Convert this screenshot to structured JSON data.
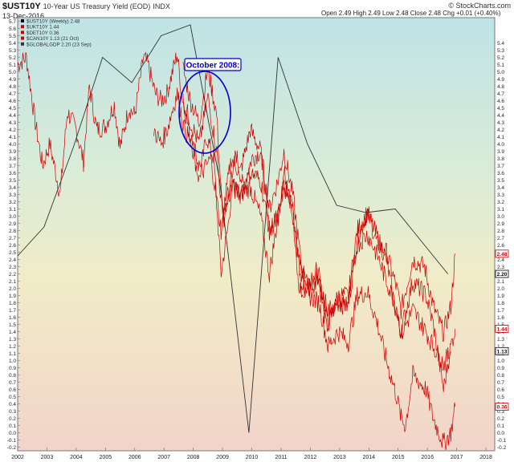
{
  "header": {
    "symbol": "$UST10Y",
    "description": "10-Year US Treasury Yield (EOD)",
    "exchange": "INDX",
    "date": "13-Dec-2016",
    "ohlc": "Open 2.49  High 2.49  Low 2.48  Close 2.48  Chg +0.01 (+0.40%)",
    "logo": "© StockCharts.com"
  },
  "legend": [
    {
      "label": "$UST10Y (Weekly) 2.48",
      "color": "#000000"
    },
    {
      "label": "$UKT10Y 1.44",
      "color": "#cc0000"
    },
    {
      "label": "$DET10Y 0.36",
      "color": "#cc0000"
    },
    {
      "label": "$CAN10Y 1.13 (21 Oct)",
      "color": "#cc0000"
    },
    {
      "label": "$GLOBALGDP 2.20 (23 Sep)",
      "color": "#333333"
    }
  ],
  "annotation": {
    "label": "October 2008:"
  },
  "chart_data": {
    "type": "line",
    "x_ticks": [
      "2002",
      "2003",
      "2004",
      "2005",
      "2006",
      "2007",
      "2008",
      "2009",
      "2010",
      "2011",
      "2012",
      "2013",
      "2014",
      "2015",
      "2016",
      "2017",
      "2018"
    ],
    "x_range": [
      2002.0,
      2018.3
    ],
    "y_range": [
      -0.25,
      5.75
    ],
    "y_ticks": [
      -0.2,
      -0.1,
      0.0,
      0.1,
      0.2,
      0.3,
      0.4,
      0.5,
      0.6,
      0.7,
      0.8,
      0.9,
      1.0,
      1.1,
      1.2,
      1.3,
      1.4,
      1.5,
      1.6,
      1.7,
      1.8,
      1.9,
      2.0,
      2.1,
      2.2,
      2.3,
      2.4,
      2.5,
      2.6,
      2.7,
      2.8,
      2.9,
      3.0,
      3.1,
      3.2,
      3.3,
      3.4,
      3.5,
      3.6,
      3.7,
      3.8,
      3.9,
      4.0,
      4.1,
      4.2,
      4.3,
      4.4,
      4.5,
      4.6,
      4.7,
      4.8,
      4.9,
      5.0,
      5.1,
      5.2,
      5.3,
      5.4,
      5.5,
      5.6,
      5.7
    ],
    "y_ticks_right": [
      -0.2,
      -0.1,
      0.0,
      0.1,
      0.2,
      0.3,
      0.4,
      0.5,
      0.6,
      0.7,
      0.8,
      0.9,
      1.0,
      1.1,
      1.2,
      1.3,
      1.4,
      1.5,
      1.6,
      1.7,
      1.8,
      1.9,
      2.0,
      2.1,
      2.2,
      2.3,
      2.4,
      2.5,
      2.6,
      2.7,
      2.8,
      2.9,
      3.0,
      3.1,
      3.2,
      3.3,
      3.4,
      3.5,
      3.6,
      3.7,
      3.8,
      3.9,
      4.0,
      4.1,
      4.2,
      4.3,
      4.4,
      4.5,
      4.6,
      4.7,
      4.8,
      4.9,
      5.0,
      5.1,
      5.2,
      5.3,
      5.4
    ],
    "series": [
      {
        "name": "$GLOBALGDP",
        "color": "#333333",
        "points": [
          [
            2002.0,
            2.45
          ],
          [
            2002.9,
            2.85
          ],
          [
            2003.9,
            3.95
          ],
          [
            2004.9,
            5.2
          ],
          [
            2005.9,
            4.85
          ],
          [
            2006.9,
            5.5
          ],
          [
            2007.9,
            5.65
          ],
          [
            2008.9,
            3.5
          ],
          [
            2009.9,
            0.0
          ],
          [
            2010.9,
            5.2
          ],
          [
            2011.9,
            4.0
          ],
          [
            2012.9,
            3.15
          ],
          [
            2013.9,
            3.05
          ],
          [
            2014.9,
            3.1
          ],
          [
            2015.9,
            2.6
          ],
          [
            2016.7,
            2.2
          ]
        ]
      },
      {
        "name": "$UST10Y",
        "color": "#cc0000",
        "points": [
          [
            2002.0,
            5.1
          ],
          [
            2002.3,
            5.2
          ],
          [
            2002.6,
            4.3
          ],
          [
            2002.85,
            3.7
          ],
          [
            2003.1,
            4.0
          ],
          [
            2003.45,
            3.3
          ],
          [
            2003.7,
            4.45
          ],
          [
            2004.0,
            4.2
          ],
          [
            2004.25,
            3.75
          ],
          [
            2004.45,
            4.8
          ],
          [
            2004.7,
            4.2
          ],
          [
            2005.0,
            4.25
          ],
          [
            2005.3,
            4.55
          ],
          [
            2005.5,
            3.95
          ],
          [
            2005.8,
            4.5
          ],
          [
            2006.0,
            4.4
          ],
          [
            2006.3,
            5.2
          ],
          [
            2006.45,
            5.1
          ],
          [
            2006.7,
            4.7
          ],
          [
            2006.9,
            4.6
          ],
          [
            2007.1,
            4.7
          ],
          [
            2007.45,
            5.25
          ],
          [
            2007.6,
            4.7
          ],
          [
            2007.9,
            4.1
          ],
          [
            2008.2,
            3.5
          ],
          [
            2008.45,
            4.1
          ],
          [
            2008.7,
            3.8
          ],
          [
            2008.95,
            2.2
          ],
          [
            2009.2,
            2.9
          ],
          [
            2009.45,
            3.9
          ],
          [
            2009.7,
            3.4
          ],
          [
            2010.0,
            3.8
          ],
          [
            2010.3,
            3.9
          ],
          [
            2010.6,
            2.8
          ],
          [
            2010.9,
            3.0
          ],
          [
            2011.1,
            3.6
          ],
          [
            2011.3,
            3.4
          ],
          [
            2011.6,
            2.0
          ],
          [
            2011.9,
            2.0
          ],
          [
            2012.2,
            2.3
          ],
          [
            2012.55,
            1.45
          ],
          [
            2012.9,
            1.8
          ],
          [
            2013.3,
            1.75
          ],
          [
            2013.6,
            2.7
          ],
          [
            2013.95,
            3.05
          ],
          [
            2014.3,
            2.6
          ],
          [
            2014.6,
            2.5
          ],
          [
            2014.95,
            2.0
          ],
          [
            2015.1,
            1.7
          ],
          [
            2015.5,
            2.4
          ],
          [
            2015.9,
            2.3
          ],
          [
            2016.2,
            1.75
          ],
          [
            2016.55,
            1.38
          ],
          [
            2016.8,
            1.75
          ],
          [
            2016.95,
            2.48
          ]
        ]
      },
      {
        "name": "$UKT10Y",
        "color": "#cc0000",
        "points": [
          [
            2007.65,
            5.05
          ],
          [
            2007.9,
            4.6
          ],
          [
            2008.2,
            4.3
          ],
          [
            2008.5,
            5.05
          ],
          [
            2008.8,
            4.4
          ],
          [
            2009.0,
            3.0
          ],
          [
            2009.3,
            3.8
          ],
          [
            2009.6,
            3.6
          ],
          [
            2009.95,
            4.2
          ],
          [
            2010.3,
            3.9
          ],
          [
            2010.6,
            3.1
          ],
          [
            2010.9,
            3.5
          ],
          [
            2011.1,
            3.9
          ],
          [
            2011.4,
            3.3
          ],
          [
            2011.7,
            2.3
          ],
          [
            2011.95,
            2.0
          ],
          [
            2012.3,
            2.2
          ],
          [
            2012.6,
            1.5
          ],
          [
            2012.95,
            1.9
          ],
          [
            2013.3,
            1.9
          ],
          [
            2013.6,
            2.8
          ],
          [
            2013.95,
            3.05
          ],
          [
            2014.3,
            2.7
          ],
          [
            2014.6,
            2.4
          ],
          [
            2014.95,
            1.6
          ],
          [
            2015.1,
            1.4
          ],
          [
            2015.5,
            2.1
          ],
          [
            2015.95,
            1.9
          ],
          [
            2016.2,
            1.5
          ],
          [
            2016.55,
            0.6
          ],
          [
            2016.8,
            1.2
          ],
          [
            2016.95,
            1.44
          ]
        ]
      },
      {
        "name": "$DET10Y",
        "color": "#cc0000",
        "points": [
          [
            2007.65,
            4.6
          ],
          [
            2007.9,
            4.3
          ],
          [
            2008.2,
            4.0
          ],
          [
            2008.5,
            4.65
          ],
          [
            2008.8,
            3.9
          ],
          [
            2009.0,
            3.0
          ],
          [
            2009.3,
            3.5
          ],
          [
            2009.6,
            3.3
          ],
          [
            2009.95,
            3.4
          ],
          [
            2010.3,
            3.0
          ],
          [
            2010.6,
            2.2
          ],
          [
            2010.9,
            3.0
          ],
          [
            2011.1,
            3.5
          ],
          [
            2011.4,
            3.1
          ],
          [
            2011.7,
            2.0
          ],
          [
            2011.95,
            1.9
          ],
          [
            2012.3,
            1.8
          ],
          [
            2012.6,
            1.2
          ],
          [
            2012.95,
            1.4
          ],
          [
            2013.3,
            1.25
          ],
          [
            2013.6,
            1.9
          ],
          [
            2013.95,
            1.95
          ],
          [
            2014.3,
            1.5
          ],
          [
            2014.6,
            1.0
          ],
          [
            2014.95,
            0.5
          ],
          [
            2015.1,
            0.2
          ],
          [
            2015.25,
            0.1
          ],
          [
            2015.5,
            0.8
          ],
          [
            2015.95,
            0.6
          ],
          [
            2016.2,
            0.2
          ],
          [
            2016.55,
            -0.15
          ],
          [
            2016.8,
            0.0
          ],
          [
            2016.95,
            0.36
          ]
        ]
      },
      {
        "name": "$CAN10Y",
        "color": "#cc0000",
        "points": [
          [
            2006.65,
            4.2
          ],
          [
            2006.9,
            4.0
          ],
          [
            2007.1,
            4.2
          ],
          [
            2007.45,
            4.7
          ],
          [
            2007.7,
            4.2
          ],
          [
            2007.95,
            4.0
          ],
          [
            2008.3,
            3.6
          ],
          [
            2008.6,
            3.8
          ],
          [
            2008.95,
            2.8
          ],
          [
            2009.3,
            3.4
          ],
          [
            2009.6,
            3.3
          ],
          [
            2009.95,
            3.6
          ],
          [
            2010.3,
            3.5
          ],
          [
            2010.6,
            2.8
          ],
          [
            2010.9,
            3.0
          ],
          [
            2011.1,
            3.4
          ],
          [
            2011.4,
            3.1
          ],
          [
            2011.7,
            2.2
          ],
          [
            2011.95,
            2.0
          ],
          [
            2012.3,
            2.1
          ],
          [
            2012.6,
            1.7
          ],
          [
            2012.95,
            1.8
          ],
          [
            2013.3,
            1.8
          ],
          [
            2013.6,
            2.6
          ],
          [
            2013.95,
            2.75
          ],
          [
            2014.3,
            2.45
          ],
          [
            2014.6,
            2.1
          ],
          [
            2014.95,
            1.75
          ],
          [
            2015.1,
            1.35
          ],
          [
            2015.5,
            1.7
          ],
          [
            2015.95,
            1.4
          ],
          [
            2016.2,
            1.2
          ],
          [
            2016.55,
            0.95
          ],
          [
            2016.8,
            1.13
          ]
        ]
      }
    ],
    "badges": [
      {
        "value": "2.48",
        "y": 2.48,
        "color": "#cc0000"
      },
      {
        "value": "2.20",
        "y": 2.2,
        "color": "#000000"
      },
      {
        "value": "1.44",
        "y": 1.44,
        "color": "#cc0000"
      },
      {
        "value": "1.13",
        "y": 1.13,
        "color": "#000000"
      },
      {
        "value": "0.36",
        "y": 0.36,
        "color": "#cc0000"
      }
    ]
  }
}
